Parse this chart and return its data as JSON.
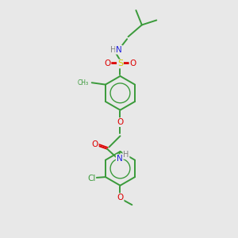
{
  "bg_color": "#e8e8e8",
  "bond_color": "#3a9a3a",
  "atom_colors": {
    "N": "#2020dd",
    "O": "#dd0000",
    "S": "#cccc00",
    "Cl": "#3a9a3a",
    "H": "#808080"
  },
  "font_size": 7.5,
  "line_width": 1.4,
  "fig_size": [
    3.0,
    3.0
  ],
  "dpi": 100
}
